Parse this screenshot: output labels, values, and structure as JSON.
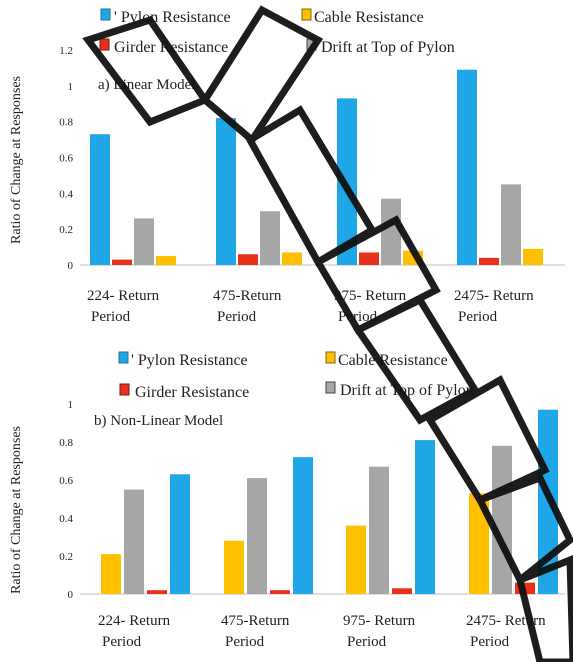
{
  "colors": {
    "pylon": "#1fa6e6",
    "cable": "#ffc000",
    "girder": "#e8311b",
    "drift": "#a6a6a6"
  },
  "chart_data": [
    {
      "type": "bar",
      "subtitle": "a) Linear Model",
      "ylabel": "Ratio of Change at Responses",
      "ylim": [
        0,
        1.2
      ],
      "yticks": [
        "0",
        "0.2",
        "0.4",
        "0.6",
        "0.8",
        "1",
        "1.2"
      ],
      "categories": [
        [
          "224- Return",
          "Period"
        ],
        [
          "475-Return",
          "Period"
        ],
        [
          "975- Return",
          "Period"
        ],
        [
          "2475- Return",
          "Period"
        ]
      ],
      "legend": [
        "' Pylon Resistance",
        "Cable Resistance",
        "Girder Resistance",
        "Drift at Top of Pylon"
      ],
      "series": [
        {
          "name": "Pylon Resistance",
          "color": "#1fa6e6",
          "values": [
            0.73,
            0.82,
            0.93,
            1.09
          ]
        },
        {
          "name": "Girder Resistance",
          "color": "#e8311b",
          "values": [
            0.03,
            0.06,
            0.07,
            0.04
          ]
        },
        {
          "name": "Drift at Top of Pylon",
          "color": "#a6a6a6",
          "values": [
            0.26,
            0.3,
            0.37,
            0.45
          ]
        },
        {
          "name": "Cable Resistance",
          "color": "#ffc000",
          "values": [
            0.05,
            0.07,
            0.08,
            0.09
          ]
        }
      ]
    },
    {
      "type": "bar",
      "subtitle": "b) Non-Linear Model",
      "ylabel": "Ratio of Change at Responses",
      "ylim": [
        0,
        1.0
      ],
      "yticks": [
        "0",
        "0.2",
        "0.4",
        "0.6",
        "0.8",
        "1"
      ],
      "categories": [
        [
          "224- Return",
          "Period"
        ],
        [
          "475-Return",
          "Period"
        ],
        [
          "975- Return",
          "Period"
        ],
        [
          "2475- Return",
          "Period"
        ]
      ],
      "legend": [
        "' Pylon Resistance",
        "Cable Resistance",
        "Girder Resistance",
        "Drift at Top of Pylon"
      ],
      "series": [
        {
          "name": "Cable Resistance",
          "color": "#ffc000",
          "values": [
            0.21,
            0.28,
            0.36,
            0.53
          ]
        },
        {
          "name": "Drift at Top of Pylon",
          "color": "#a6a6a6",
          "values": [
            0.55,
            0.61,
            0.67,
            0.78
          ]
        },
        {
          "name": "Girder Resistance",
          "color": "#e8311b",
          "values": [
            0.02,
            0.02,
            0.03,
            0.06
          ]
        },
        {
          "name": "Pylon Resistance",
          "color": "#1fa6e6",
          "values": [
            0.63,
            0.72,
            0.81,
            0.97
          ]
        }
      ]
    }
  ]
}
